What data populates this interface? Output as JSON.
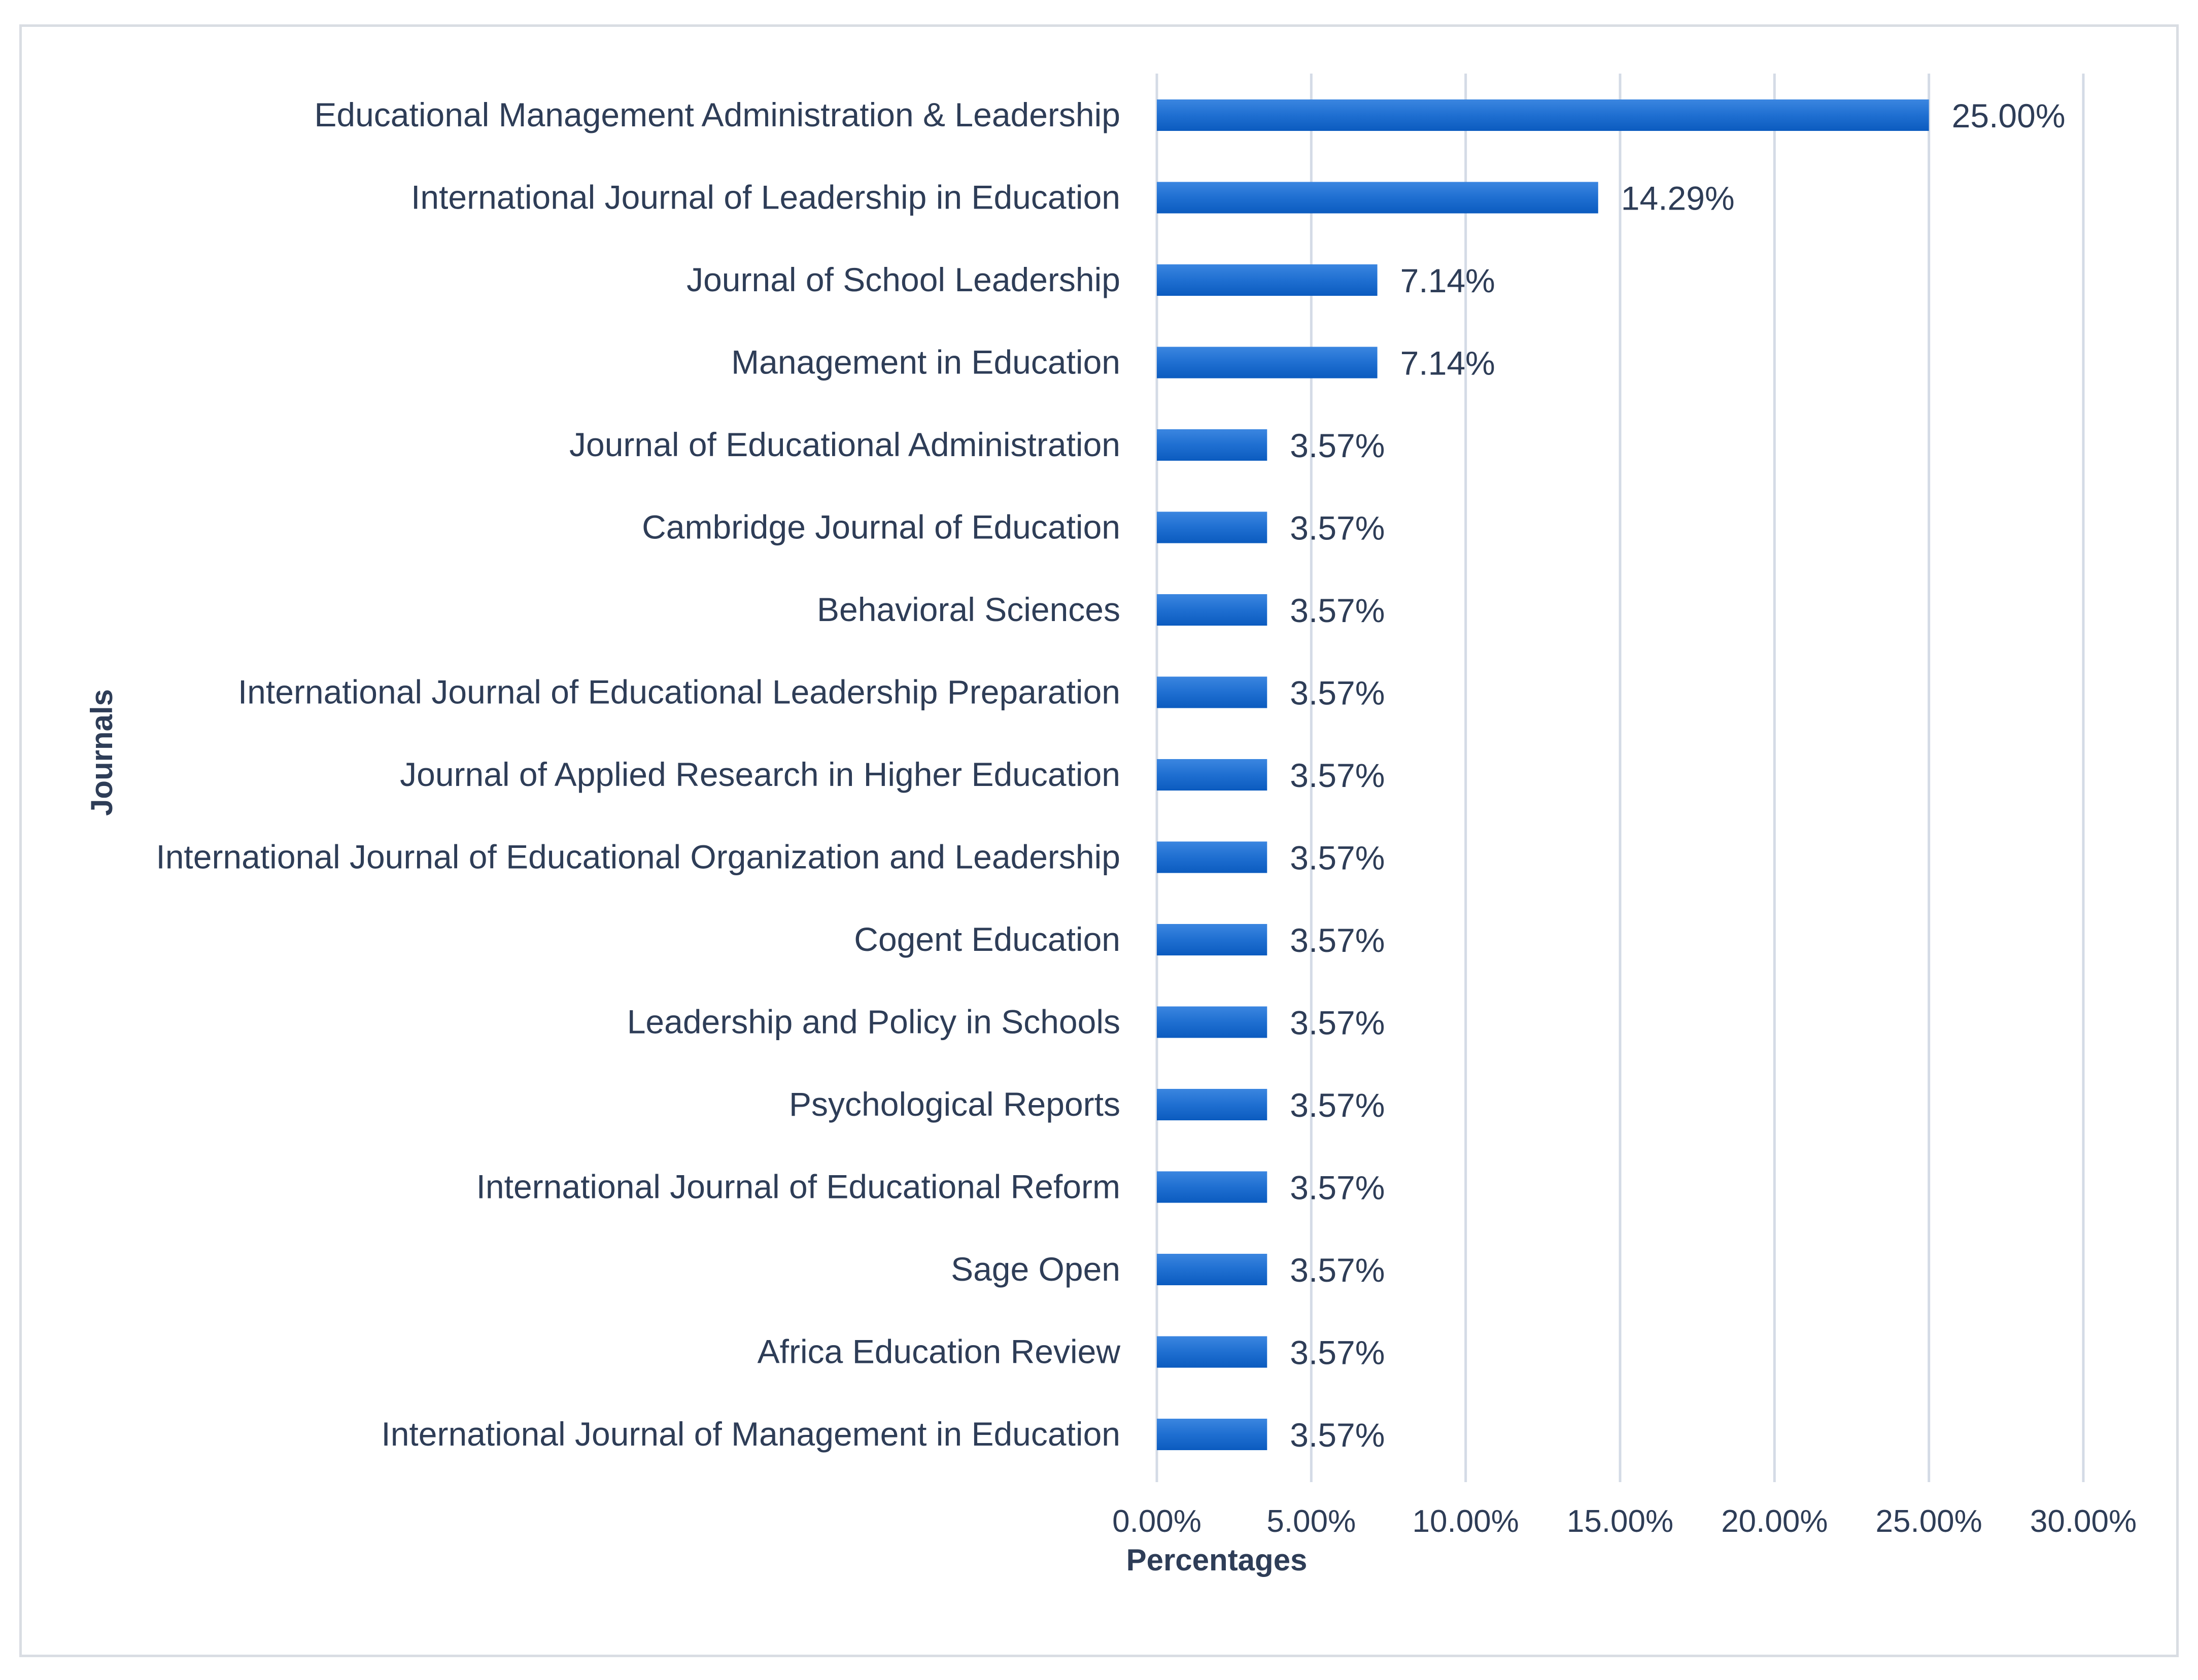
{
  "chart_data": {
    "type": "bar",
    "orientation": "horizontal",
    "categories": [
      "Educational Management Administration & Leadership",
      "International Journal of Leadership in Education",
      "Journal of School Leadership",
      "Management in Education",
      "Journal of Educational Administration",
      "Cambridge Journal of Education",
      "Behavioral Sciences",
      "International Journal of Educational Leadership Preparation",
      "Journal of Applied Research in Higher Education",
      "International Journal of Educational Organization and Leadership",
      "Cogent Education",
      "Leadership and Policy in Schools",
      "Psychological Reports",
      "International Journal of Educational Reform",
      "Sage Open",
      "Africa Education Review",
      "International Journal of Management in Education"
    ],
    "values": [
      25.0,
      14.29,
      7.14,
      7.14,
      3.57,
      3.57,
      3.57,
      3.57,
      3.57,
      3.57,
      3.57,
      3.57,
      3.57,
      3.57,
      3.57,
      3.57,
      3.57
    ],
    "data_labels": [
      "25.00%",
      "14.29%",
      "7.14%",
      "7.14%",
      "3.57%",
      "3.57%",
      "3.57%",
      "3.57%",
      "3.57%",
      "3.57%",
      "3.57%",
      "3.57%",
      "3.57%",
      "3.57%",
      "3.57%",
      "3.57%",
      "3.57%"
    ],
    "xlabel": "Percentages",
    "ylabel": "Journals",
    "xlim": [
      0,
      30
    ],
    "xticks": [
      0,
      5,
      10,
      15,
      20,
      25,
      30
    ],
    "xtick_labels": [
      "0.00%",
      "5.00%",
      "10.00%",
      "15.00%",
      "20.00%",
      "25.00%",
      "30.00%"
    ],
    "grid": true,
    "bar_color": "#1f6fd1",
    "bar_color_dark": "#0b5bbf"
  }
}
